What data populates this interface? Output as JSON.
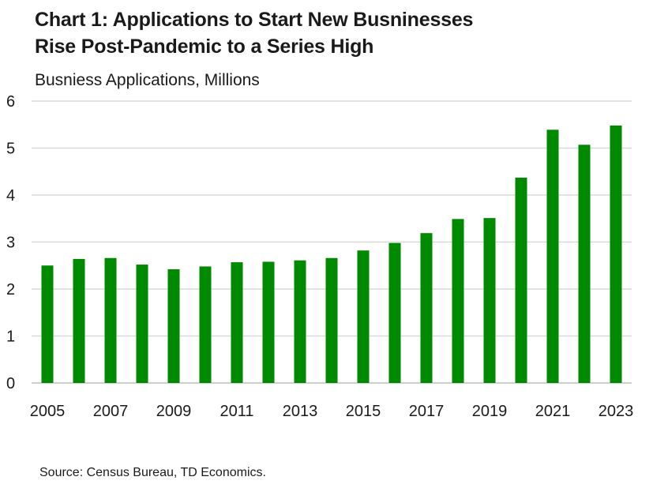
{
  "chart_data": {
    "type": "bar",
    "title_lines": [
      "Chart 1: Applications to Start New Busninesses",
      "Rise Post-Pandemic to a Series High"
    ],
    "subtitle": "Busniess Applications, Millions",
    "xlabel": "",
    "ylabel": "",
    "ylim": [
      0,
      6
    ],
    "yticks": [
      "0",
      "1",
      "2",
      "3",
      "4",
      "5",
      "6"
    ],
    "categories": [
      "2005",
      "2006",
      "2007",
      "2008",
      "2009",
      "2010",
      "2011",
      "2012",
      "2013",
      "2014",
      "2015",
      "2016",
      "2017",
      "2018",
      "2019",
      "2020",
      "2021",
      "2022",
      "2023"
    ],
    "xtick_labels": [
      "2005",
      "2007",
      "2009",
      "2011",
      "2013",
      "2015",
      "2017",
      "2019",
      "2021",
      "2023"
    ],
    "values": [
      2.5,
      2.64,
      2.66,
      2.52,
      2.42,
      2.48,
      2.57,
      2.58,
      2.61,
      2.66,
      2.82,
      2.98,
      3.19,
      3.49,
      3.51,
      4.37,
      5.39,
      5.07,
      5.48
    ],
    "bar_color": "#008a00",
    "grid_color": "#d9d9d9",
    "grid": true,
    "legend": "none",
    "source": "Source: Census Bureau, TD Economics."
  }
}
